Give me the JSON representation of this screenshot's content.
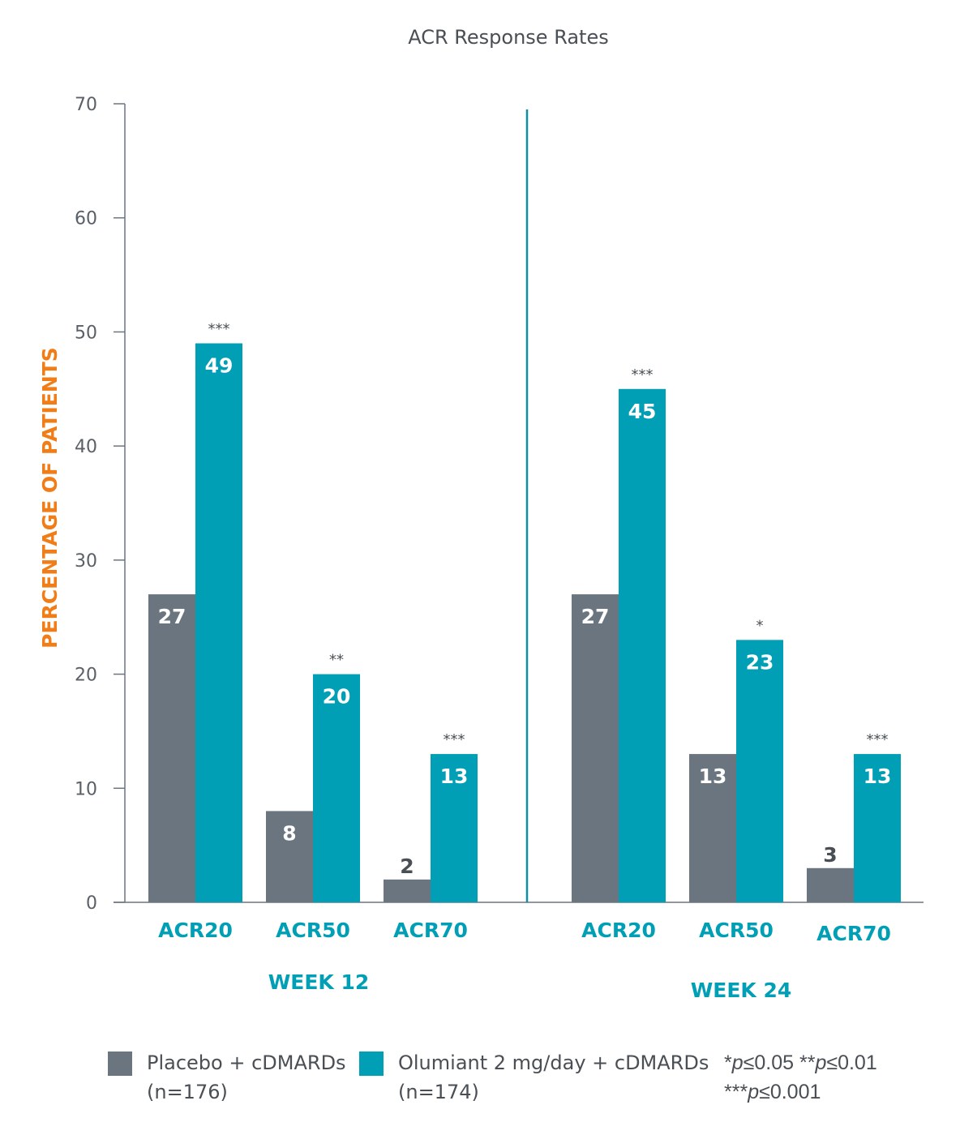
{
  "chart_data": {
    "type": "bar",
    "title": "ACR Response Rates",
    "ylabel": "PERCENTAGE OF PATIENTS",
    "ylim": [
      0,
      70
    ],
    "yticks": [
      "0",
      "10",
      "20",
      "30",
      "40",
      "50",
      "60",
      "70"
    ],
    "groups": [
      {
        "name": "WEEK 12",
        "categories": [
          "ACR20",
          "ACR50",
          "ACR70"
        ],
        "placebo": [
          27,
          8,
          2
        ],
        "olumiant": [
          49,
          20,
          13
        ],
        "significance": [
          "***",
          "**",
          "***"
        ]
      },
      {
        "name": "WEEK 24",
        "categories": [
          "ACR20",
          "ACR50",
          "ACR70"
        ],
        "placebo": [
          27,
          13,
          3
        ],
        "olumiant": [
          45,
          23,
          13
        ],
        "significance": [
          "***",
          "*",
          "***"
        ]
      }
    ],
    "series": [
      {
        "name": "Placebo + cDMARDs",
        "n": "(n=176)",
        "color": "#6b7580"
      },
      {
        "name": "Olumiant 2 mg/day + cDMARDs",
        "n": "(n=174)",
        "color": "#009fb5"
      }
    ],
    "colors": {
      "accent_orange": "#f07d17",
      "category_teal": "#009fb5",
      "divider": "#0d8fa0"
    },
    "footnote": {
      "line1": {
        "s1": "*",
        "p1": "p",
        "v1": "≤0.05 **",
        "p2": "p",
        "v2": "≤0.01"
      },
      "line2": {
        "s1": "***",
        "p1": "p",
        "v1": "≤0.001"
      }
    }
  }
}
